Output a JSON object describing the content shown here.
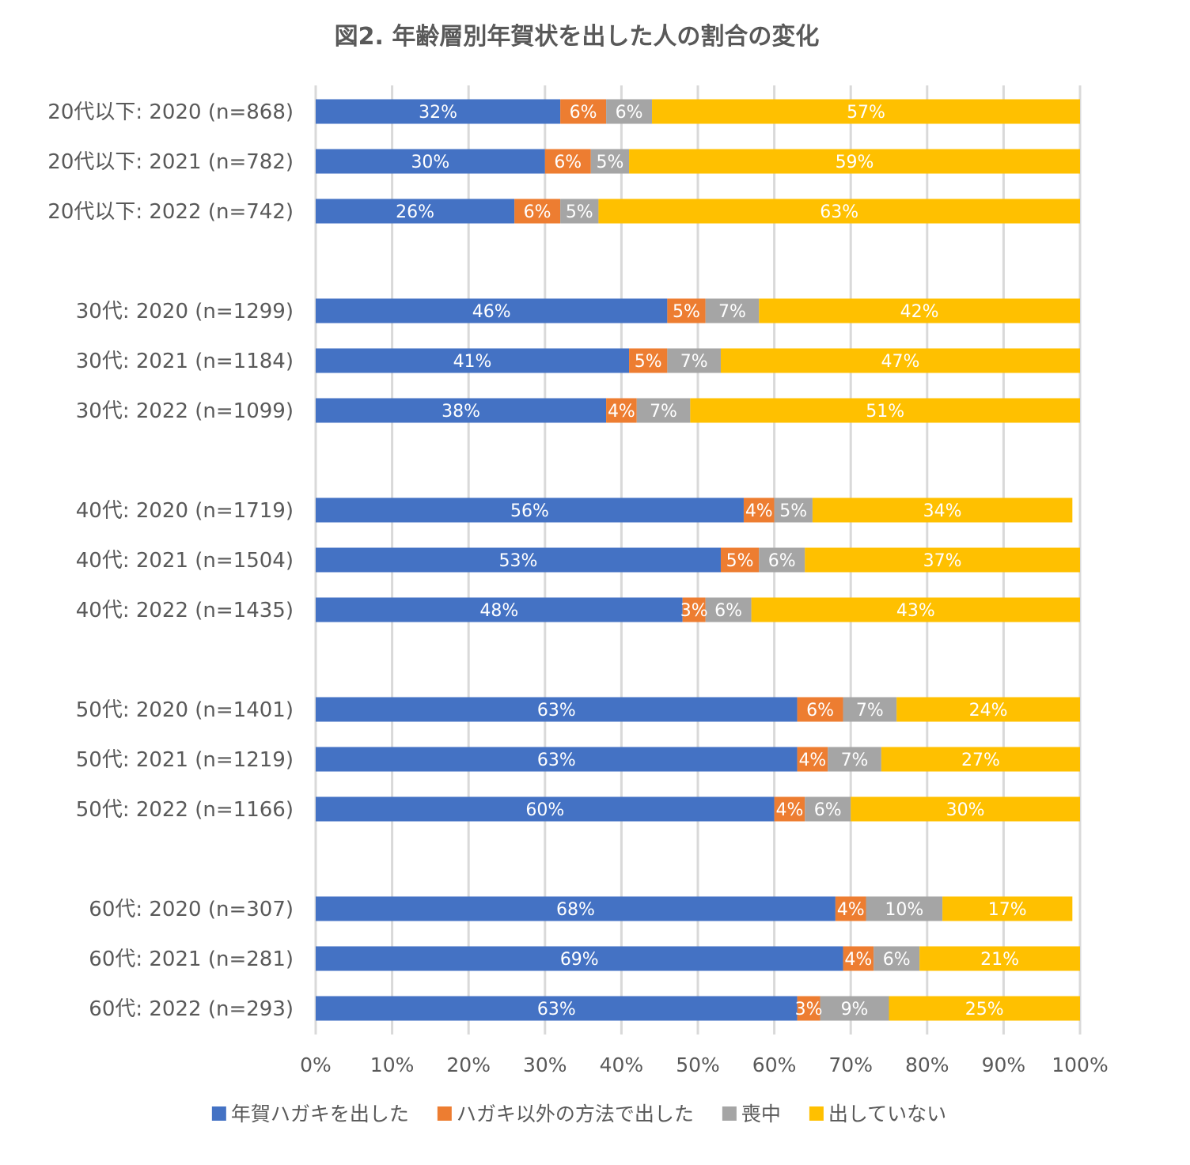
{
  "chart_data": {
    "type": "bar",
    "orientation": "horizontal",
    "stacked": true,
    "title": "図2. 年齢層別年賀状を出した人の割合の変化",
    "categories": [
      "20代以下: 2020 (n=868)",
      "20代以下: 2021 (n=782)",
      "20代以下: 2022 (n=742)",
      "",
      "30代: 2020 (n=1299)",
      "30代: 2021 (n=1184)",
      "30代: 2022 (n=1099)",
      "",
      "40代: 2020 (n=1719)",
      "40代: 2021 (n=1504)",
      "40代: 2022 (n=1435)",
      "",
      "50代: 2020 (n=1401)",
      "50代: 2021 (n=1219)",
      "50代: 2022 (n=1166)",
      "",
      "60代: 2020 (n=307)",
      "60代: 2021 (n=281)",
      "60代: 2022 (n=293)"
    ],
    "series": [
      {
        "name": "年賀ハガキを出した",
        "color": "#4472c4",
        "values": [
          32,
          30,
          26,
          null,
          46,
          41,
          38,
          null,
          56,
          53,
          48,
          null,
          63,
          63,
          60,
          null,
          68,
          69,
          63
        ]
      },
      {
        "name": "ハガキ以外の方法で出した",
        "color": "#ed7d31",
        "values": [
          6,
          6,
          6,
          null,
          5,
          5,
          4,
          null,
          4,
          5,
          3,
          null,
          6,
          4,
          4,
          null,
          4,
          4,
          3
        ]
      },
      {
        "name": "喪中",
        "color": "#a5a5a5",
        "values": [
          6,
          5,
          5,
          null,
          7,
          7,
          7,
          null,
          5,
          6,
          6,
          null,
          7,
          7,
          6,
          null,
          10,
          6,
          9
        ]
      },
      {
        "name": "出していない",
        "color": "#ffc000",
        "values": [
          57,
          59,
          63,
          null,
          42,
          47,
          51,
          null,
          34,
          37,
          43,
          null,
          24,
          27,
          30,
          null,
          17,
          21,
          25
        ]
      }
    ],
    "xlim": [
      0,
      100
    ],
    "xticks": [
      "0%",
      "10%",
      "20%",
      "30%",
      "40%",
      "50%",
      "60%",
      "70%",
      "80%",
      "90%",
      "100%"
    ],
    "grid": "vertical",
    "legend_position": "bottom",
    "data_label_suffix": "%"
  }
}
